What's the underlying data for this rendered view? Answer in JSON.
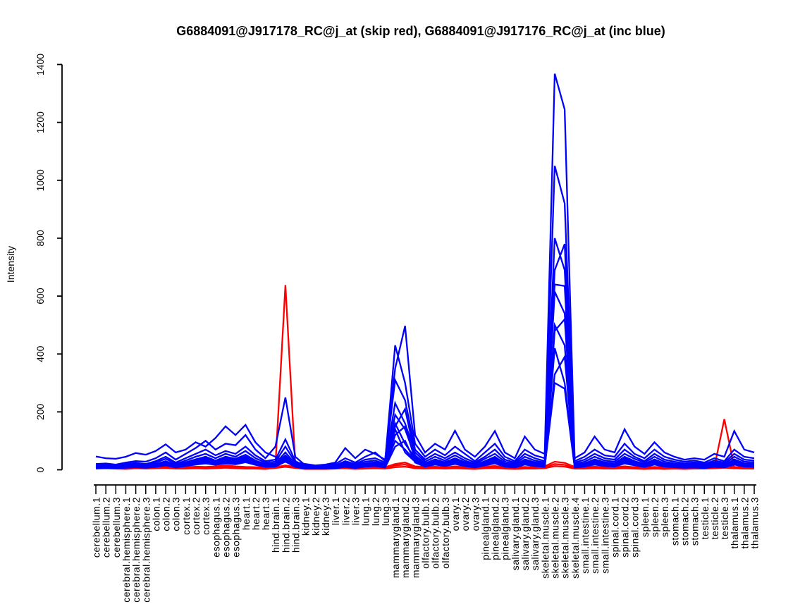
{
  "chart_data": {
    "type": "line",
    "title": "G6884091@J917178_RC@j_at (skip red), G6884091@J917176_RC@j_at (inc blue)",
    "skip_probeset": "G6884091@J917178_RC@j_at",
    "inc_probeset": "G6884091@J917176_RC@j_at",
    "skip_color": "#FF0000",
    "inc_color": "#0000FF",
    "xlabel": "",
    "ylabel": "Intensity",
    "ylim": [
      0,
      1400
    ],
    "yticks": [
      0,
      200,
      400,
      600,
      800,
      1000,
      1200,
      1400
    ],
    "grid": false,
    "legend_position": "none",
    "categories": [
      "cerebellum.1",
      "cerebellum.2",
      "cerebellum.3",
      "cerebral.hemisphere.1",
      "cerebral.hemisphere.2",
      "cerebral.hemisphere.3",
      "colon.1",
      "colon.2",
      "colon.3",
      "cortex.1",
      "cortex.2",
      "cortex.3",
      "esophagus.1",
      "esophagus.2",
      "esophagus.3",
      "heart.1",
      "heart.2",
      "heart.3",
      "hind.brain.1",
      "hind.brain.2",
      "hind.brain.3",
      "kidney.1",
      "kidney.2",
      "kidney.3",
      "liver.1",
      "liver.2",
      "liver.3",
      "lung.1",
      "lung.2",
      "lung.3",
      "mammarygland.1",
      "mammarygland.2",
      "mammarygland.3",
      "olfactory.bulb.1",
      "olfactory.bulb.2",
      "olfactory.bulb.3",
      "ovary.1",
      "ovary.2",
      "ovary.3",
      "pinealgland.1",
      "pinealgland.2",
      "pinealgland.3",
      "salivary.gland.1",
      "salivary.gland.2",
      "salivary.gland.3",
      "skeletal.muscle.1",
      "skeletal.muscle.2",
      "skeletal.muscle.3",
      "skeletal.muscle.4",
      "small.intestine.1",
      "small.intestine.2",
      "small.intestine.3",
      "spinal.cord.1",
      "spinal.cord.2",
      "spinal.cord.3",
      "spleen.1",
      "spleen.2",
      "spleen.3",
      "stomach.1",
      "stomach.2",
      "stomach.3",
      "testicle.1",
      "testicle.2",
      "testicle.3",
      "thalamus.1",
      "thalamus.2",
      "thalamus.3"
    ],
    "series": [
      {
        "name": "skip.red.1",
        "group": "skip",
        "color": "#FF0000",
        "values": [
          10,
          9,
          11,
          8,
          10,
          9,
          12,
          14,
          10,
          9,
          11,
          10,
          12,
          15,
          12,
          10,
          9,
          8,
          14,
          638,
          16,
          8,
          7,
          8,
          9,
          10,
          8,
          10,
          11,
          9,
          20,
          25,
          12,
          10,
          11,
          9,
          12,
          10,
          8,
          11,
          13,
          9,
          8,
          10,
          9,
          12,
          28,
          24,
          10,
          9,
          11,
          9,
          10,
          12,
          9,
          8,
          10,
          8,
          9,
          8,
          9,
          8,
          10,
          14,
          10,
          9,
          8
        ]
      },
      {
        "name": "skip.red.2",
        "group": "skip",
        "color": "#FF0000",
        "values": [
          6,
          7,
          6,
          5,
          7,
          6,
          8,
          9,
          7,
          6,
          8,
          7,
          8,
          10,
          8,
          7,
          6,
          5,
          9,
          15,
          10,
          5,
          5,
          5,
          6,
          7,
          5,
          7,
          8,
          6,
          15,
          18,
          8,
          7,
          8,
          6,
          8,
          7,
          5,
          8,
          9,
          6,
          5,
          7,
          6,
          8,
          20,
          17,
          7,
          6,
          8,
          6,
          7,
          8,
          6,
          5,
          7,
          5,
          6,
          5,
          6,
          6,
          8,
          175,
          9,
          7,
          6
        ]
      },
      {
        "name": "skip.red.3",
        "group": "skip",
        "color": "#FF0000",
        "values": [
          4,
          5,
          4,
          3,
          5,
          4,
          5,
          6,
          4,
          4,
          5,
          4,
          5,
          7,
          5,
          4,
          4,
          3,
          6,
          10,
          6,
          3,
          3,
          3,
          4,
          5,
          3,
          4,
          5,
          4,
          9,
          11,
          5,
          4,
          5,
          4,
          5,
          4,
          3,
          5,
          6,
          4,
          3,
          4,
          4,
          5,
          13,
          11,
          4,
          4,
          5,
          4,
          4,
          5,
          4,
          3,
          4,
          3,
          4,
          3,
          4,
          4,
          5,
          7,
          5,
          4,
          4
        ]
      },
      {
        "name": "inc.blue.1",
        "group": "inc",
        "color": "#0000FF",
        "values": [
          46,
          40,
          38,
          45,
          58,
          52,
          65,
          88,
          60,
          70,
          95,
          80,
          110,
          150,
          120,
          155,
          95,
          60,
          45,
          30,
          25,
          20,
          15,
          18,
          25,
          75,
          40,
          70,
          55,
          35,
          350,
          497,
          120,
          60,
          90,
          70,
          135,
          70,
          45,
          80,
          134,
          60,
          40,
          115,
          70,
          55,
          1368,
          1245,
          40,
          60,
          115,
          70,
          60,
          140,
          80,
          55,
          95,
          60,
          45,
          35,
          40,
          35,
          55,
          45,
          134,
          70,
          60
        ]
      },
      {
        "name": "inc.blue.2",
        "group": "inc",
        "color": "#0000FF",
        "values": [
          20,
          22,
          18,
          25,
          30,
          28,
          40,
          60,
          35,
          55,
          75,
          100,
          70,
          90,
          85,
          120,
          70,
          40,
          80,
          250,
          45,
          15,
          12,
          15,
          20,
          40,
          25,
          45,
          60,
          30,
          430,
          300,
          90,
          45,
          70,
          50,
          80,
          55,
          30,
          60,
          90,
          45,
          30,
          70,
          50,
          40,
          1050,
          920,
          30,
          45,
          70,
          50,
          45,
          90,
          55,
          40,
          70,
          45,
          35,
          28,
          32,
          25,
          40,
          30,
          70,
          45,
          40
        ]
      },
      {
        "name": "inc.blue.3",
        "group": "inc",
        "color": "#0000FF",
        "values": [
          15,
          18,
          14,
          20,
          24,
          20,
          30,
          45,
          25,
          40,
          55,
          70,
          50,
          65,
          55,
          80,
          50,
          30,
          35,
          105,
          30,
          12,
          10,
          12,
          15,
          30,
          20,
          35,
          40,
          25,
          310,
          240,
          70,
          35,
          55,
          40,
          60,
          40,
          25,
          45,
          70,
          35,
          25,
          55,
          40,
          30,
          800,
          690,
          25,
          35,
          55,
          40,
          35,
          70,
          45,
          30,
          55,
          35,
          28,
          22,
          26,
          20,
          32,
          25,
          55,
          35,
          32
        ]
      },
      {
        "name": "inc.blue.4",
        "group": "inc",
        "color": "#0000FF",
        "values": [
          12,
          15,
          11,
          16,
          20,
          17,
          25,
          38,
          20,
          32,
          45,
          55,
          40,
          55,
          45,
          65,
          40,
          25,
          28,
          80,
          25,
          10,
          8,
          10,
          12,
          25,
          16,
          28,
          32,
          20,
          230,
          160,
          60,
          28,
          45,
          32,
          50,
          32,
          20,
          38,
          55,
          28,
          20,
          45,
          32,
          25,
          690,
          780,
          20,
          28,
          45,
          32,
          28,
          55,
          38,
          25,
          45,
          28,
          22,
          18,
          21,
          16,
          26,
          20,
          45,
          28,
          26
        ]
      },
      {
        "name": "inc.blue.5",
        "group": "inc",
        "color": "#0000FF",
        "values": [
          10,
          12,
          9,
          13,
          16,
          14,
          20,
          30,
          16,
          26,
          36,
          45,
          32,
          45,
          38,
          52,
          32,
          20,
          22,
          60,
          20,
          8,
          7,
          8,
          10,
          20,
          13,
          22,
          26,
          16,
          150,
          210,
          50,
          22,
          36,
          26,
          40,
          26,
          16,
          30,
          45,
          22,
          16,
          36,
          26,
          20,
          640,
          635,
          16,
          22,
          36,
          26,
          22,
          45,
          30,
          20,
          36,
          22,
          18,
          14,
          17,
          13,
          21,
          16,
          36,
          22,
          21
        ]
      },
      {
        "name": "inc.blue.6",
        "group": "inc",
        "color": "#0000FF",
        "values": [
          9,
          11,
          8,
          12,
          15,
          13,
          18,
          27,
          14,
          23,
          32,
          40,
          29,
          40,
          34,
          46,
          29,
          18,
          20,
          50,
          18,
          7,
          6,
          7,
          9,
          18,
          12,
          20,
          23,
          14,
          190,
          140,
          45,
          20,
          32,
          23,
          36,
          23,
          14,
          27,
          40,
          20,
          14,
          32,
          23,
          18,
          615,
          540,
          14,
          20,
          32,
          23,
          20,
          40,
          27,
          18,
          32,
          20,
          16,
          12,
          15,
          11,
          19,
          14,
          32,
          20,
          19
        ]
      },
      {
        "name": "inc.blue.7",
        "group": "inc",
        "color": "#0000FF",
        "values": [
          8,
          10,
          7,
          11,
          13,
          11,
          16,
          24,
          13,
          20,
          28,
          35,
          26,
          35,
          30,
          41,
          26,
          16,
          18,
          45,
          16,
          6,
          5,
          6,
          8,
          16,
          10,
          18,
          20,
          13,
          160,
          90,
          40,
          18,
          28,
          20,
          32,
          20,
          13,
          24,
          35,
          18,
          13,
          28,
          20,
          16,
          480,
          520,
          13,
          18,
          28,
          20,
          18,
          35,
          24,
          16,
          28,
          18,
          14,
          11,
          13,
          10,
          17,
          13,
          28,
          18,
          17
        ]
      },
      {
        "name": "inc.blue.8",
        "group": "inc",
        "color": "#0000FF",
        "values": [
          7,
          9,
          6,
          10,
          12,
          10,
          14,
          21,
          11,
          18,
          25,
          31,
          23,
          31,
          26,
          36,
          23,
          14,
          16,
          40,
          14,
          6,
          5,
          6,
          7,
          14,
          9,
          16,
          18,
          11,
          120,
          150,
          35,
          16,
          25,
          18,
          28,
          18,
          11,
          21,
          31,
          16,
          11,
          25,
          18,
          14,
          500,
          430,
          11,
          16,
          25,
          18,
          16,
          31,
          21,
          14,
          25,
          16,
          13,
          10,
          12,
          9,
          15,
          11,
          25,
          16,
          15
        ]
      },
      {
        "name": "inc.blue.9",
        "group": "inc",
        "color": "#0000FF",
        "values": [
          6,
          8,
          6,
          9,
          11,
          9,
          13,
          19,
          10,
          16,
          22,
          28,
          21,
          28,
          23,
          32,
          21,
          13,
          14,
          35,
          13,
          5,
          4,
          5,
          6,
          13,
          8,
          14,
          16,
          10,
          100,
          70,
          31,
          14,
          22,
          16,
          25,
          16,
          10,
          19,
          28,
          14,
          10,
          22,
          16,
          13,
          420,
          300,
          10,
          14,
          22,
          16,
          14,
          28,
          19,
          13,
          22,
          14,
          11,
          9,
          10,
          8,
          13,
          10,
          22,
          14,
          13
        ]
      },
      {
        "name": "inc.blue.10",
        "group": "inc",
        "color": "#0000FF",
        "values": [
          6,
          7,
          5,
          8,
          10,
          8,
          11,
          17,
          9,
          14,
          20,
          25,
          19,
          25,
          21,
          29,
          19,
          11,
          13,
          32,
          11,
          5,
          4,
          5,
          6,
          11,
          7,
          13,
          14,
          9,
          140,
          60,
          28,
          13,
          20,
          14,
          22,
          14,
          9,
          17,
          25,
          13,
          9,
          20,
          14,
          11,
          330,
          390,
          9,
          13,
          20,
          14,
          13,
          25,
          17,
          11,
          20,
          13,
          10,
          8,
          9,
          7,
          12,
          9,
          20,
          13,
          12
        ]
      },
      {
        "name": "inc.blue.11",
        "group": "inc",
        "color": "#0000FF",
        "values": [
          5,
          6,
          5,
          7,
          9,
          7,
          10,
          15,
          8,
          13,
          18,
          22,
          17,
          22,
          19,
          26,
          17,
          10,
          11,
          28,
          10,
          4,
          4,
          4,
          5,
          10,
          6,
          11,
          13,
          8,
          80,
          100,
          25,
          11,
          18,
          13,
          20,
          13,
          8,
          15,
          22,
          11,
          8,
          18,
          13,
          10,
          300,
          280,
          8,
          11,
          18,
          13,
          11,
          22,
          15,
          10,
          18,
          11,
          9,
          7,
          8,
          6,
          10,
          8,
          18,
          11,
          10
        ]
      }
    ]
  }
}
